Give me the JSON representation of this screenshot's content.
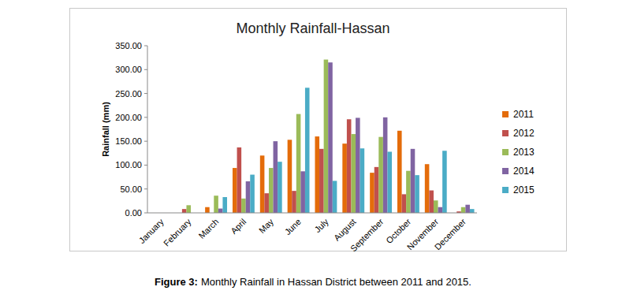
{
  "chart_data": {
    "type": "bar",
    "title": "Monthly Rainfall-Hassan",
    "y_label": "Rainfall (mm)",
    "categories": [
      "January",
      "February",
      "March",
      "April",
      "May",
      "June",
      "July",
      "August",
      "September",
      "October",
      "November",
      "December"
    ],
    "series": [
      {
        "name": "2011",
        "color": "#e46c0a",
        "values": [
          0,
          0,
          12,
          94,
          120,
          153,
          160,
          145,
          84,
          172,
          102,
          0
        ]
      },
      {
        "name": "2012",
        "color": "#c0504d",
        "values": [
          0,
          8,
          0,
          137,
          41,
          46,
          134,
          196,
          96,
          39,
          47,
          3
        ]
      },
      {
        "name": "2013",
        "color": "#9bbb59",
        "values": [
          0,
          16,
          36,
          30,
          94,
          207,
          321,
          165,
          159,
          88,
          26,
          12
        ]
      },
      {
        "name": "2014",
        "color": "#8064a2",
        "values": [
          0,
          0,
          9,
          66,
          150,
          87,
          315,
          199,
          200,
          134,
          12,
          17
        ]
      },
      {
        "name": "2015",
        "color": "#4bacc6",
        "values": [
          0,
          0,
          33,
          80,
          107,
          262,
          67,
          135,
          128,
          79,
          130,
          8
        ]
      }
    ],
    "ylim": [
      0,
      350
    ],
    "yticks": [
      {
        "value": 0,
        "label": "0.00"
      },
      {
        "value": 50,
        "label": "50.00"
      },
      {
        "value": 100,
        "label": "100.00"
      },
      {
        "value": 150,
        "label": "150.00"
      },
      {
        "value": 200,
        "label": "200.00"
      },
      {
        "value": 250,
        "label": "250.00"
      },
      {
        "value": 300,
        "label": "300.00"
      },
      {
        "value": 350,
        "label": "350.00"
      }
    ],
    "grid": false,
    "legend": "right"
  },
  "figure_caption": {
    "number": "Figure 3:",
    "text": "Monthly Rainfall in Hassan District between 2011 and 2015."
  }
}
